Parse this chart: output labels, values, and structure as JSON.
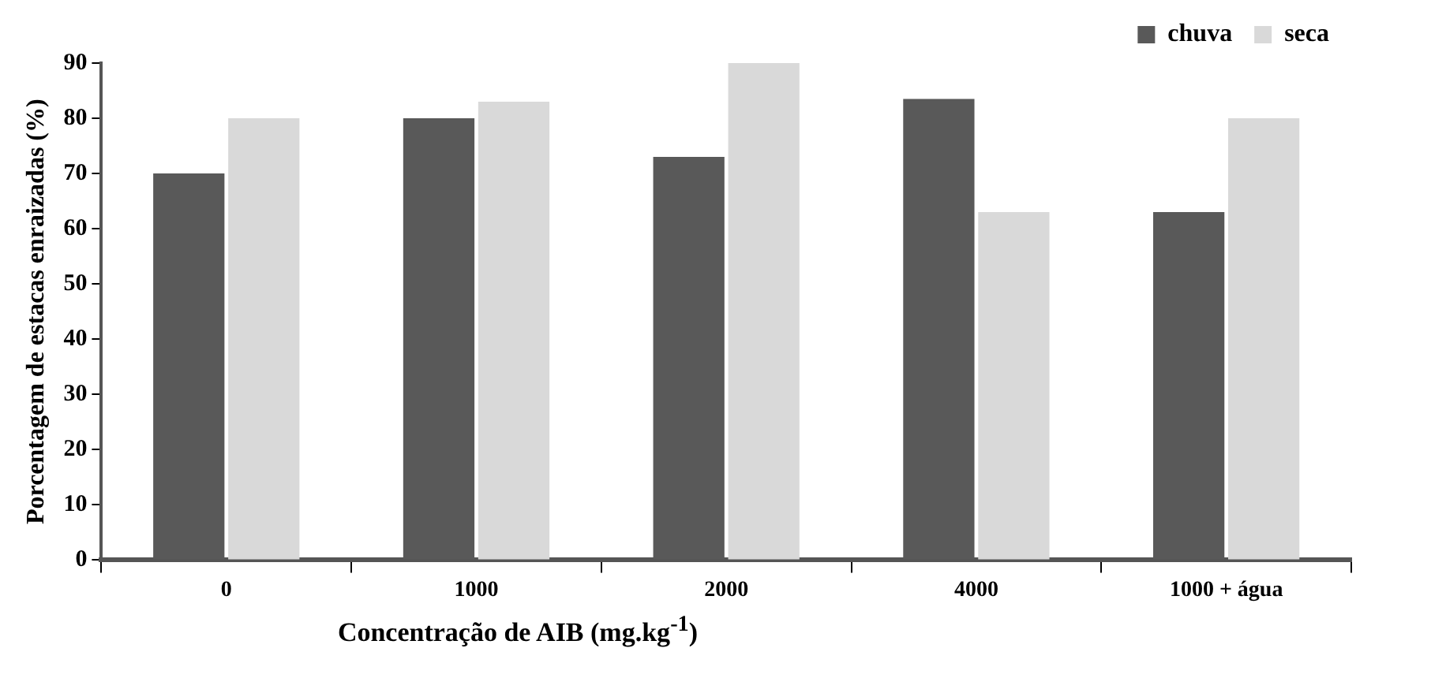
{
  "chart_data": {
    "type": "bar",
    "categories": [
      "0",
      "1000",
      "2000",
      "4000",
      "1000 + água"
    ],
    "series": [
      {
        "name": "chuva",
        "color": "#595959",
        "values": [
          70,
          80,
          73,
          83.5,
          63
        ]
      },
      {
        "name": "seca",
        "color": "#d9d9d9",
        "values": [
          80,
          83,
          90,
          63,
          80
        ]
      }
    ],
    "ylabel": "Porcentagem de estacas enraizadas (%)",
    "xlabel": "Concentração  de AIB (mg.kg$^{-1}$)",
    "ylim": [
      0,
      90
    ],
    "yticks": [
      0,
      10,
      20,
      30,
      40,
      50,
      60,
      70,
      80,
      90
    ],
    "grid": false,
    "legend": "top right"
  }
}
